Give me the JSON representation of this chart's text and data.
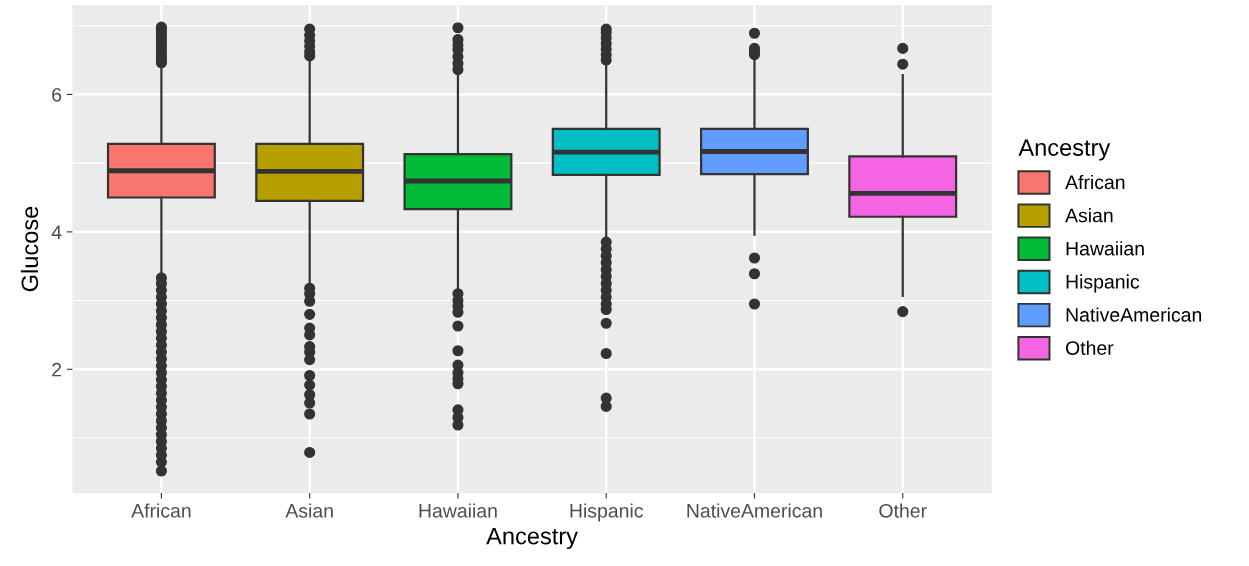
{
  "chart_data": {
    "type": "box",
    "xlabel": "Ancestry",
    "ylabel": "Glucose",
    "legend_title": "Ancestry",
    "legend": "right",
    "grid": true,
    "categories": [
      "African",
      "Asian",
      "Hawaiian",
      "Hispanic",
      "NativeAmerican",
      "Other"
    ],
    "ylim": [
      0.2,
      7.3
    ],
    "yticks": [
      2,
      4,
      6
    ],
    "series": [
      {
        "name": "African",
        "color": "#f8766d",
        "boxes": [
          {
            "low": 3.35,
            "q1": 4.5,
            "median": 4.89,
            "q3": 5.28,
            "high": 6.42,
            "outliers": [
              6.46,
              6.5,
              6.55,
              6.6,
              6.65,
              6.7,
              6.75,
              6.8,
              6.85,
              6.9,
              6.95,
              6.98,
              3.33,
              3.25,
              3.15,
              3.05,
              2.95,
              2.85,
              2.75,
              2.65,
              2.55,
              2.45,
              2.35,
              2.25,
              2.15,
              2.05,
              1.95,
              1.85,
              1.75,
              1.65,
              1.55,
              1.45,
              1.35,
              1.25,
              1.15,
              1.05,
              0.95,
              0.85,
              0.75,
              0.65,
              0.52
            ]
          },
          null,
          null,
          null,
          null,
          null
        ]
      },
      {
        "name": "Asian",
        "color": "#b79f00",
        "boxes": [
          null,
          {
            "low": 3.23,
            "q1": 4.45,
            "median": 4.88,
            "q3": 5.28,
            "high": 6.52,
            "outliers": [
              6.56,
              6.62,
              6.7,
              6.78,
              6.86,
              6.95,
              3.18,
              3.1,
              2.99,
              2.8,
              2.6,
              2.5,
              2.33,
              2.25,
              2.14,
              1.91,
              1.77,
              1.63,
              1.51,
              1.35,
              0.79
            ]
          },
          null,
          null,
          null,
          null
        ]
      },
      {
        "name": "Hawaiian",
        "color": "#00ba38",
        "boxes": [
          null,
          null,
          {
            "low": 3.16,
            "q1": 4.33,
            "median": 4.74,
            "q3": 5.13,
            "high": 6.31,
            "outliers": [
              6.36,
              6.45,
              6.55,
              6.65,
              6.72,
              6.8,
              6.97,
              3.1,
              3.0,
              2.92,
              2.83,
              2.63,
              2.27,
              2.06,
              1.95,
              1.86,
              1.79,
              1.41,
              1.3,
              1.19
            ]
          },
          null,
          null,
          null
        ]
      },
      {
        "name": "Hispanic",
        "color": "#00bfc4",
        "boxes": [
          null,
          null,
          null,
          {
            "low": 3.91,
            "q1": 4.83,
            "median": 5.16,
            "q3": 5.5,
            "high": 6.43,
            "outliers": [
              6.5,
              6.58,
              6.66,
              6.74,
              6.82,
              6.9,
              6.95,
              3.85,
              3.75,
              3.65,
              3.55,
              3.45,
              3.35,
              3.25,
              3.15,
              3.05,
              2.95,
              2.87,
              2.67,
              2.23,
              1.58,
              1.46
            ]
          },
          null,
          null
        ]
      },
      {
        "name": "NativeAmerican",
        "color": "#619cff",
        "boxes": [
          null,
          null,
          null,
          null,
          {
            "low": 3.96,
            "q1": 4.84,
            "median": 5.17,
            "q3": 5.5,
            "high": 6.5,
            "outliers": [
              6.58,
              6.62,
              6.67,
              6.89,
              3.62,
              3.39,
              2.95
            ]
          },
          null
        ]
      },
      {
        "name": "Other",
        "color": "#f564e3",
        "boxes": [
          null,
          null,
          null,
          null,
          null,
          {
            "low": 3.07,
            "q1": 4.22,
            "median": 4.56,
            "q3": 5.1,
            "high": 6.28,
            "outliers": [
              6.44,
              6.67,
              2.84
            ]
          }
        ]
      }
    ]
  }
}
